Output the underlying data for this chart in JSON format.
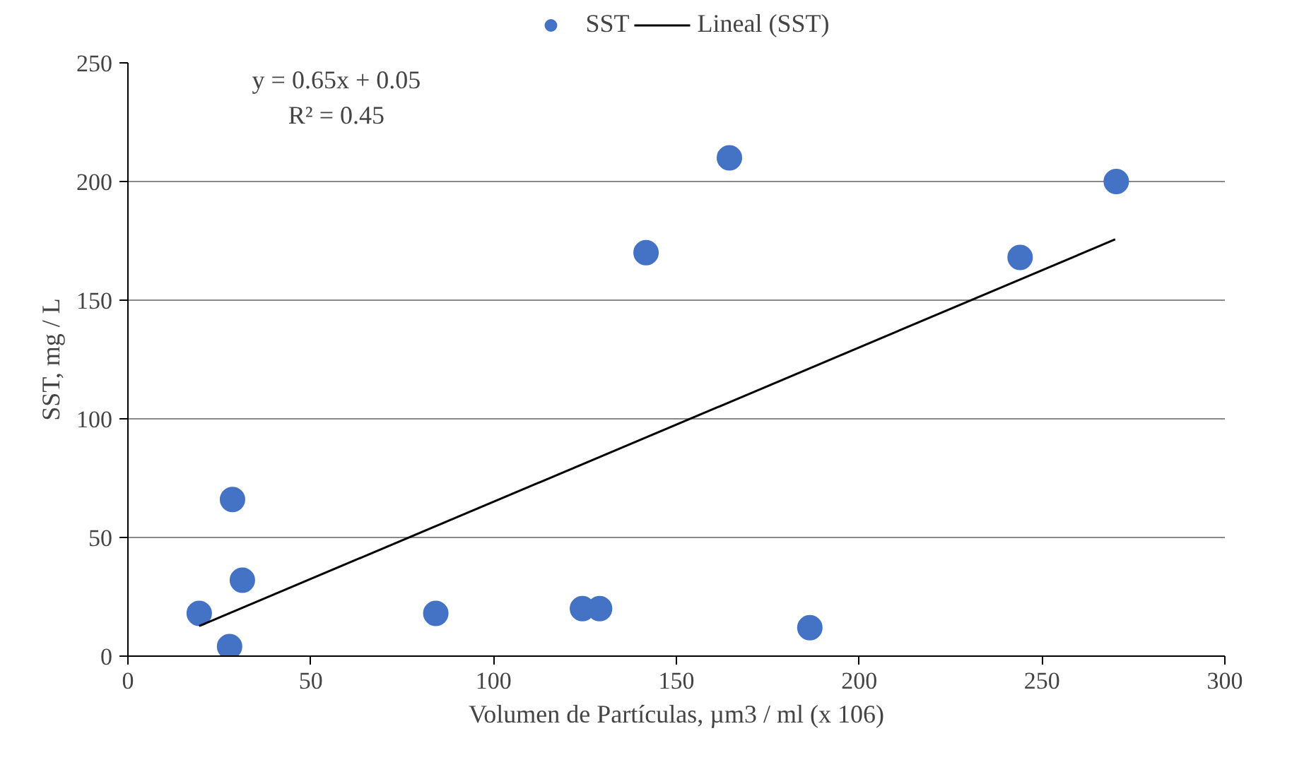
{
  "chart_data": {
    "type": "scatter",
    "xlabel": "Volumen de Partículas, µm3 / ml (x 106)",
    "ylabel": "SST, mg / L",
    "xlim": [
      0,
      300
    ],
    "xticks": [
      0,
      50,
      100,
      150,
      200,
      250,
      300
    ],
    "ylim": [
      0,
      250
    ],
    "yticks": [
      0,
      50,
      100,
      150,
      200,
      250
    ],
    "grid": "y",
    "legend": "top",
    "marker": "circle",
    "annotations": [
      "y = 0.65x + 0.05",
      "R² = 0.45"
    ],
    "series": [
      {
        "name": "SST",
        "color": "#4472c4",
        "x": [
          19.5,
          27.8,
          28.6,
          31.3,
          84.2,
          124.3,
          129,
          141.7,
          164.5,
          186.5,
          244,
          270.3
        ],
        "values": [
          18,
          4,
          66,
          32,
          18,
          20,
          20,
          170,
          210,
          12,
          168,
          200
        ]
      },
      {
        "name": "Lineal (SST)",
        "type": "line",
        "color": "#000000",
        "marker": "none",
        "x": [
          19.5,
          270
        ],
        "values": [
          12.7,
          175.6
        ]
      }
    ]
  }
}
